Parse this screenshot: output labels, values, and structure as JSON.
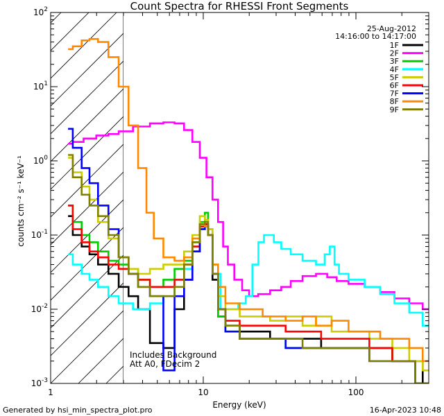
{
  "chart_data": {
    "type": "line",
    "title": "Count Spectra for RHESSI Front Segments",
    "xlabel": "Energy (keV)",
    "ylabel": "counts cm⁻² s⁻¹ keV⁻¹",
    "xscale": "log",
    "yscale": "log",
    "xlim": [
      1,
      300
    ],
    "ylim": [
      0.001,
      100
    ],
    "x_ticks": [
      {
        "value": 1,
        "label": "1"
      },
      {
        "value": 10,
        "label": "10"
      },
      {
        "value": 100,
        "label": "100"
      }
    ],
    "y_ticks": [
      {
        "value": 0.001,
        "base": "10",
        "exp": "-3"
      },
      {
        "value": 0.01,
        "base": "10",
        "exp": "-2"
      },
      {
        "value": 0.1,
        "base": "10",
        "exp": "-1"
      },
      {
        "value": 1,
        "base": "10",
        "exp": "0"
      },
      {
        "value": 10,
        "base": "10",
        "exp": "1"
      },
      {
        "value": 100,
        "base": "10",
        "exp": "2"
      }
    ],
    "date": "25-Aug-2012",
    "time_range": "14:16:00 to 14:17:00",
    "excluded_region": {
      "x_max": 3
    },
    "annotations": [
      "Includes Background",
      "Att A0, FDecim 2"
    ],
    "legend_position": "top-right",
    "series": [
      {
        "name": "1F",
        "color": "#000000",
        "points": [
          [
            1.3,
            0.18
          ],
          [
            1.5,
            0.1
          ],
          [
            1.7,
            0.07
          ],
          [
            1.9,
            0.055
          ],
          [
            2.2,
            0.04
          ],
          [
            2.6,
            0.03
          ],
          [
            3.0,
            0.02
          ],
          [
            3.5,
            0.015
          ],
          [
            4.0,
            0.01
          ],
          [
            5.0,
            0.0035
          ],
          [
            6.0,
            0.003
          ],
          [
            7.0,
            0.01
          ],
          [
            8.0,
            0.025
          ],
          [
            9.0,
            0.06
          ],
          [
            10.0,
            0.12
          ],
          [
            10.5,
            0.14
          ],
          [
            11.0,
            0.1
          ],
          [
            12.0,
            0.025
          ],
          [
            13.0,
            0.008
          ],
          [
            15.0,
            0.006
          ],
          [
            20.0,
            0.005
          ],
          [
            25.0,
            0.005
          ],
          [
            30.0,
            0.004
          ],
          [
            40.0,
            0.004
          ],
          [
            50.0,
            0.004
          ],
          [
            70.0,
            0.003
          ],
          [
            100.0,
            0.003
          ],
          [
            150.0,
            0.003
          ],
          [
            200.0,
            0.002
          ],
          [
            250.0,
            0.002
          ],
          [
            300.0,
            0.001
          ]
        ]
      },
      {
        "name": "2F",
        "color": "#ff00ff",
        "points": [
          [
            1.3,
            1.7
          ],
          [
            1.5,
            1.8
          ],
          [
            1.8,
            2.0
          ],
          [
            2.2,
            2.2
          ],
          [
            2.6,
            2.3
          ],
          [
            3.0,
            2.5
          ],
          [
            4.0,
            2.9
          ],
          [
            5.0,
            3.2
          ],
          [
            6.0,
            3.3
          ],
          [
            7.0,
            3.2
          ],
          [
            8.0,
            2.6
          ],
          [
            9.0,
            1.8
          ],
          [
            10.0,
            1.1
          ],
          [
            11.0,
            0.6
          ],
          [
            12.0,
            0.3
          ],
          [
            13.0,
            0.15
          ],
          [
            14.0,
            0.07
          ],
          [
            15.0,
            0.04
          ],
          [
            17.0,
            0.025
          ],
          [
            19.0,
            0.018
          ],
          [
            21.0,
            0.015
          ],
          [
            25.0,
            0.016
          ],
          [
            30.0,
            0.018
          ],
          [
            35.0,
            0.02
          ],
          [
            40.0,
            0.024
          ],
          [
            50.0,
            0.028
          ],
          [
            60.0,
            0.03
          ],
          [
            70.0,
            0.027
          ],
          [
            80.0,
            0.024
          ],
          [
            100.0,
            0.022
          ],
          [
            130.0,
            0.02
          ],
          [
            160.0,
            0.017
          ],
          [
            200.0,
            0.014
          ],
          [
            250.0,
            0.012
          ],
          [
            300.0,
            0.01
          ]
        ]
      },
      {
        "name": "3F",
        "color": "#00cc00",
        "points": [
          [
            1.3,
            0.25
          ],
          [
            1.5,
            0.15
          ],
          [
            1.7,
            0.1
          ],
          [
            1.9,
            0.08
          ],
          [
            2.2,
            0.06
          ],
          [
            2.6,
            0.045
          ],
          [
            3.0,
            0.04
          ],
          [
            3.5,
            0.035
          ],
          [
            4.0,
            0.025
          ],
          [
            5.0,
            0.02
          ],
          [
            6.0,
            0.025
          ],
          [
            7.0,
            0.035
          ],
          [
            8.0,
            0.045
          ],
          [
            9.0,
            0.08
          ],
          [
            10.0,
            0.15
          ],
          [
            10.5,
            0.2
          ],
          [
            11.0,
            0.12
          ],
          [
            12.0,
            0.03
          ],
          [
            13.0,
            0.008
          ],
          [
            15.0,
            0.005
          ],
          [
            20.0,
            0.004
          ],
          [
            30.0,
            0.004
          ],
          [
            40.0,
            0.003
          ],
          [
            60.0,
            0.003
          ],
          [
            100.0,
            0.003
          ],
          [
            150.0,
            0.003
          ],
          [
            200.0,
            0.002
          ],
          [
            300.0,
            0.001
          ]
        ]
      },
      {
        "name": "4F",
        "color": "#00ffff",
        "points": [
          [
            1.3,
            0.055
          ],
          [
            1.5,
            0.04
          ],
          [
            1.7,
            0.03
          ],
          [
            1.9,
            0.025
          ],
          [
            2.2,
            0.02
          ],
          [
            2.6,
            0.015
          ],
          [
            3.0,
            0.012
          ],
          [
            4.0,
            0.01
          ],
          [
            5.0,
            0.012
          ],
          [
            6.0,
            0.015
          ],
          [
            7.0,
            0.025
          ],
          [
            8.0,
            0.035
          ],
          [
            9.0,
            0.07
          ],
          [
            10.0,
            0.12
          ],
          [
            10.5,
            0.13
          ],
          [
            11.0,
            0.1
          ],
          [
            12.0,
            0.03
          ],
          [
            14.0,
            0.01
          ],
          [
            16.0,
            0.01
          ],
          [
            18.0,
            0.012
          ],
          [
            20.0,
            0.015
          ],
          [
            22.0,
            0.04
          ],
          [
            24.0,
            0.08
          ],
          [
            26.0,
            0.1
          ],
          [
            28.0,
            0.1
          ],
          [
            30.0,
            0.08
          ],
          [
            35.0,
            0.065
          ],
          [
            40.0,
            0.055
          ],
          [
            50.0,
            0.045
          ],
          [
            60.0,
            0.04
          ],
          [
            65.0,
            0.055
          ],
          [
            70.0,
            0.07
          ],
          [
            75.0,
            0.04
          ],
          [
            80.0,
            0.03
          ],
          [
            100.0,
            0.025
          ],
          [
            130.0,
            0.02
          ],
          [
            160.0,
            0.016
          ],
          [
            200.0,
            0.012
          ],
          [
            250.0,
            0.009
          ],
          [
            300.0,
            0.006
          ]
        ]
      },
      {
        "name": "5F",
        "color": "#cccc00",
        "points": [
          [
            1.3,
            1.1
          ],
          [
            1.5,
            0.7
          ],
          [
            1.7,
            0.45
          ],
          [
            1.9,
            0.3
          ],
          [
            2.2,
            0.15
          ],
          [
            2.6,
            0.09
          ],
          [
            3.0,
            0.05
          ],
          [
            3.5,
            0.035
          ],
          [
            4.0,
            0.03
          ],
          [
            5.0,
            0.035
          ],
          [
            6.0,
            0.04
          ],
          [
            7.0,
            0.04
          ],
          [
            8.0,
            0.06
          ],
          [
            9.0,
            0.1
          ],
          [
            10.0,
            0.18
          ],
          [
            10.5,
            0.16
          ],
          [
            11.0,
            0.12
          ],
          [
            12.0,
            0.04
          ],
          [
            13.0,
            0.015
          ],
          [
            15.0,
            0.01
          ],
          [
            20.0,
            0.008
          ],
          [
            25.0,
            0.008
          ],
          [
            30.0,
            0.007
          ],
          [
            40.0,
            0.008
          ],
          [
            50.0,
            0.006
          ],
          [
            60.0,
            0.008
          ],
          [
            80.0,
            0.005
          ],
          [
            100.0,
            0.005
          ],
          [
            150.0,
            0.004
          ],
          [
            200.0,
            0.003
          ],
          [
            250.0,
            0.002
          ],
          [
            300.0,
            0.0015
          ]
        ]
      },
      {
        "name": "6F",
        "color": "#ff0000",
        "points": [
          [
            1.3,
            0.25
          ],
          [
            1.5,
            0.12
          ],
          [
            1.7,
            0.08
          ],
          [
            1.9,
            0.06
          ],
          [
            2.2,
            0.05
          ],
          [
            2.6,
            0.04
          ],
          [
            3.0,
            0.035
          ],
          [
            3.5,
            0.03
          ],
          [
            4.0,
            0.025
          ],
          [
            5.0,
            0.02
          ],
          [
            6.0,
            0.02
          ],
          [
            7.0,
            0.025
          ],
          [
            8.0,
            0.04
          ],
          [
            9.0,
            0.07
          ],
          [
            10.0,
            0.13
          ],
          [
            10.5,
            0.14
          ],
          [
            11.0,
            0.1
          ],
          [
            12.0,
            0.03
          ],
          [
            13.0,
            0.01
          ],
          [
            15.0,
            0.007
          ],
          [
            20.0,
            0.006
          ],
          [
            30.0,
            0.006
          ],
          [
            40.0,
            0.005
          ],
          [
            50.0,
            0.005
          ],
          [
            70.0,
            0.004
          ],
          [
            100.0,
            0.004
          ],
          [
            150.0,
            0.003
          ],
          [
            200.0,
            0.002
          ],
          [
            300.0,
            0.001
          ]
        ]
      },
      {
        "name": "7F",
        "color": "#0000ff",
        "points": [
          [
            1.3,
            2.7
          ],
          [
            1.5,
            1.5
          ],
          [
            1.7,
            0.8
          ],
          [
            1.9,
            0.5
          ],
          [
            2.2,
            0.25
          ],
          [
            2.6,
            0.12
          ],
          [
            3.0,
            0.05
          ],
          [
            3.5,
            0.03
          ],
          [
            4.0,
            0.02
          ],
          [
            5.0,
            0.015
          ],
          [
            6.0,
            0.0015
          ],
          [
            7.0,
            0.015
          ],
          [
            8.0,
            0.025
          ],
          [
            9.0,
            0.06
          ],
          [
            10.0,
            0.12
          ],
          [
            10.5,
            0.13
          ],
          [
            11.0,
            0.1
          ],
          [
            12.0,
            0.03
          ],
          [
            13.0,
            0.01
          ],
          [
            15.0,
            0.005
          ],
          [
            20.0,
            0.004
          ],
          [
            30.0,
            0.004
          ],
          [
            40.0,
            0.003
          ],
          [
            50.0,
            0.003
          ],
          [
            70.0,
            0.003
          ],
          [
            100.0,
            0.003
          ],
          [
            150.0,
            0.002
          ],
          [
            200.0,
            0.002
          ],
          [
            300.0,
            0.001
          ]
        ]
      },
      {
        "name": "8F",
        "color": "#ff8800",
        "points": [
          [
            1.3,
            32.0
          ],
          [
            1.5,
            35.0
          ],
          [
            1.7,
            42.0
          ],
          [
            1.9,
            44.0
          ],
          [
            2.2,
            40.0
          ],
          [
            2.6,
            25.0
          ],
          [
            3.0,
            10.0
          ],
          [
            3.5,
            3.0
          ],
          [
            4.0,
            0.8
          ],
          [
            4.5,
            0.2
          ],
          [
            5.0,
            0.09
          ],
          [
            6.0,
            0.05
          ],
          [
            7.0,
            0.045
          ],
          [
            8.0,
            0.05
          ],
          [
            9.0,
            0.09
          ],
          [
            10.0,
            0.14
          ],
          [
            10.5,
            0.13
          ],
          [
            11.0,
            0.1
          ],
          [
            12.0,
            0.04
          ],
          [
            13.0,
            0.02
          ],
          [
            15.0,
            0.012
          ],
          [
            20.0,
            0.01
          ],
          [
            30.0,
            0.008
          ],
          [
            40.0,
            0.007
          ],
          [
            50.0,
            0.008
          ],
          [
            60.0,
            0.006
          ],
          [
            80.0,
            0.007
          ],
          [
            100.0,
            0.005
          ],
          [
            130.0,
            0.005
          ],
          [
            160.0,
            0.004
          ],
          [
            200.0,
            0.004
          ],
          [
            250.0,
            0.003
          ],
          [
            300.0,
            0.002
          ]
        ]
      },
      {
        "name": "9F",
        "color": "#808000",
        "points": [
          [
            1.3,
            1.2
          ],
          [
            1.5,
            0.6
          ],
          [
            1.7,
            0.35
          ],
          [
            1.9,
            0.25
          ],
          [
            2.2,
            0.18
          ],
          [
            2.6,
            0.1
          ],
          [
            3.0,
            0.05
          ],
          [
            3.5,
            0.03
          ],
          [
            4.0,
            0.02
          ],
          [
            5.0,
            0.015
          ],
          [
            6.0,
            0.015
          ],
          [
            7.0,
            0.02
          ],
          [
            8.0,
            0.04
          ],
          [
            9.0,
            0.08
          ],
          [
            10.0,
            0.14
          ],
          [
            10.5,
            0.15
          ],
          [
            11.0,
            0.1
          ],
          [
            12.0,
            0.03
          ],
          [
            13.0,
            0.01
          ],
          [
            15.0,
            0.006
          ],
          [
            20.0,
            0.004
          ],
          [
            30.0,
            0.004
          ],
          [
            40.0,
            0.004
          ],
          [
            50.0,
            0.003
          ],
          [
            70.0,
            0.003
          ],
          [
            100.0,
            0.003
          ],
          [
            150.0,
            0.002
          ],
          [
            200.0,
            0.002
          ],
          [
            300.0,
            0.001
          ]
        ]
      }
    ]
  },
  "footer": {
    "generated_by": "Generated by hsi_min_spectra_plot.pro",
    "timestamp": "16-Apr-2023 10:48"
  }
}
